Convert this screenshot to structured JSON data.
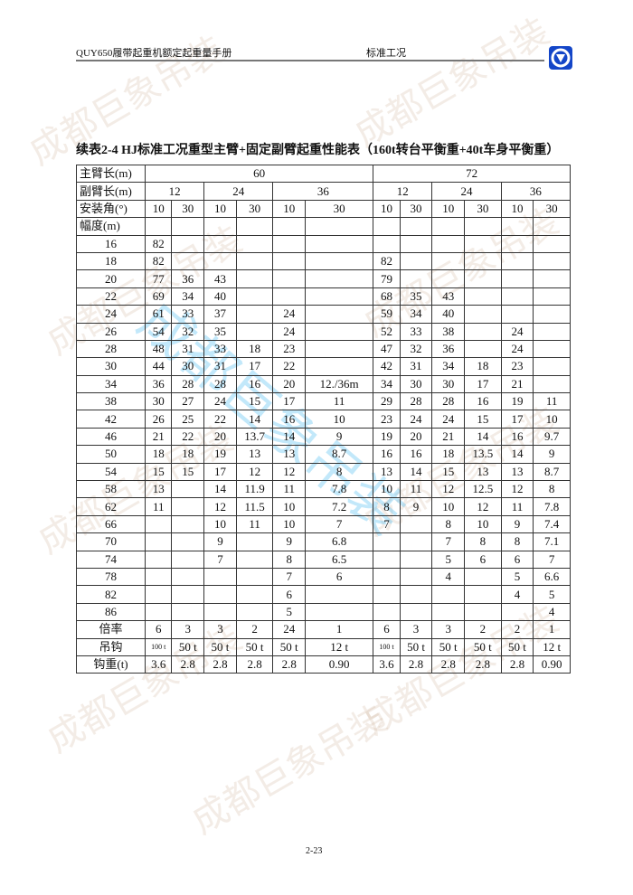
{
  "header": {
    "left": "QUY650履带起重机额定起重量手册",
    "middle": "标准工况"
  },
  "title": "续表2-4 HJ标准工况重型主臂+固定副臂起重性能表（160t转台平衡重+40t车身平衡重）",
  "table": {
    "main_boom_label": "主臂长(m)",
    "main_boom": [
      "60",
      "72"
    ],
    "jib_label": "副臂长(m)",
    "jib": [
      "12",
      "24",
      "36",
      "12",
      "24",
      "36"
    ],
    "angle_label": "安装角(°)",
    "angles": [
      "10",
      "30",
      "10",
      "30",
      "10",
      "30",
      "10",
      "30",
      "10",
      "30",
      "10",
      "30"
    ],
    "radius_label": "幅度(m)",
    "rows": [
      {
        "r": "16",
        "v": [
          "82",
          "",
          "",
          "",
          "",
          "",
          "",
          "",
          "",
          "",
          "",
          ""
        ]
      },
      {
        "r": "18",
        "v": [
          "82",
          "",
          "",
          "",
          "",
          "",
          "82",
          "",
          "",
          "",
          "",
          ""
        ]
      },
      {
        "r": "20",
        "v": [
          "77",
          "36",
          "43",
          "",
          "",
          "",
          "79",
          "",
          "",
          "",
          "",
          ""
        ]
      },
      {
        "r": "22",
        "v": [
          "69",
          "34",
          "40",
          "",
          "",
          "",
          "68",
          "35",
          "43",
          "",
          "",
          ""
        ]
      },
      {
        "r": "24",
        "v": [
          "61",
          "33",
          "37",
          "",
          "24",
          "",
          "59",
          "34",
          "40",
          "",
          "",
          ""
        ]
      },
      {
        "r": "26",
        "v": [
          "54",
          "32",
          "35",
          "",
          "24",
          "",
          "52",
          "33",
          "38",
          "",
          "24",
          ""
        ]
      },
      {
        "r": "28",
        "v": [
          "48",
          "31",
          "33",
          "18",
          "23",
          "",
          "47",
          "32",
          "36",
          "",
          "24",
          ""
        ]
      },
      {
        "r": "30",
        "v": [
          "44",
          "30",
          "31",
          "17",
          "22",
          "",
          "42",
          "31",
          "34",
          "18",
          "23",
          ""
        ]
      },
      {
        "r": "34",
        "v": [
          "36",
          "28",
          "28",
          "16",
          "20",
          "12./36m",
          "34",
          "30",
          "30",
          "17",
          "21",
          ""
        ]
      },
      {
        "r": "38",
        "v": [
          "30",
          "27",
          "24",
          "15",
          "17",
          "11",
          "29",
          "28",
          "28",
          "16",
          "19",
          "11"
        ]
      },
      {
        "r": "42",
        "v": [
          "26",
          "25",
          "22",
          "14",
          "16",
          "10",
          "23",
          "24",
          "24",
          "15",
          "17",
          "10"
        ]
      },
      {
        "r": "46",
        "v": [
          "21",
          "22",
          "20",
          "13.7",
          "14",
          "9",
          "19",
          "20",
          "21",
          "14",
          "16",
          "9.7"
        ]
      },
      {
        "r": "50",
        "v": [
          "18",
          "18",
          "19",
          "13",
          "13",
          "8.7",
          "16",
          "16",
          "18",
          "13.5",
          "14",
          "9"
        ]
      },
      {
        "r": "54",
        "v": [
          "15",
          "15",
          "17",
          "12",
          "12",
          "8",
          "13",
          "14",
          "15",
          "13",
          "13",
          "8.7"
        ]
      },
      {
        "r": "58",
        "v": [
          "13",
          "",
          "14",
          "11.9",
          "11",
          "7.8",
          "10",
          "11",
          "12",
          "12.5",
          "12",
          "8"
        ]
      },
      {
        "r": "62",
        "v": [
          "11",
          "",
          "12",
          "11.5",
          "10",
          "7.2",
          "8",
          "9",
          "10",
          "12",
          "11",
          "7.8"
        ]
      },
      {
        "r": "66",
        "v": [
          "",
          "",
          "10",
          "11",
          "10",
          "7",
          "7",
          "",
          "8",
          "10",
          "9",
          "7.4"
        ]
      },
      {
        "r": "70",
        "v": [
          "",
          "",
          "9",
          "",
          "9",
          "6.8",
          "",
          "",
          "7",
          "8",
          "8",
          "7.1"
        ]
      },
      {
        "r": "74",
        "v": [
          "",
          "",
          "7",
          "",
          "8",
          "6.5",
          "",
          "",
          "5",
          "6",
          "6",
          "7"
        ]
      },
      {
        "r": "78",
        "v": [
          "",
          "",
          "",
          "",
          "7",
          "6",
          "",
          "",
          "4",
          "",
          "5",
          "6.6"
        ]
      },
      {
        "r": "82",
        "v": [
          "",
          "",
          "",
          "",
          "6",
          "",
          "",
          "",
          "",
          "",
          "4",
          "5"
        ]
      },
      {
        "r": "86",
        "v": [
          "",
          "",
          "",
          "",
          "5",
          "",
          "",
          "",
          "",
          "",
          "",
          "4"
        ]
      }
    ],
    "reeving_label": "倍率",
    "reeving": [
      "6",
      "3",
      "3",
      "2",
      "24",
      "1",
      "6",
      "3",
      "3",
      "2",
      "2",
      "1"
    ],
    "hook_label": "吊钩",
    "hook": [
      "100 t",
      "50 t",
      "50 t",
      "50 t",
      "50 t",
      "12 t",
      "100 t",
      "50 t",
      "50 t",
      "50 t",
      "50 t",
      "12 t"
    ],
    "hook_weight_label": "钩重(t)",
    "hook_weight": [
      "3.6",
      "2.8",
      "2.8",
      "2.8",
      "2.8",
      "0.90",
      "3.6",
      "2.8",
      "2.8",
      "2.8",
      "2.8",
      "0.90"
    ]
  },
  "watermark": "成都巨象吊装",
  "page_number": "2-23",
  "colors": {
    "logo": "#1446c8",
    "watermark_blue": "#50bef0"
  }
}
